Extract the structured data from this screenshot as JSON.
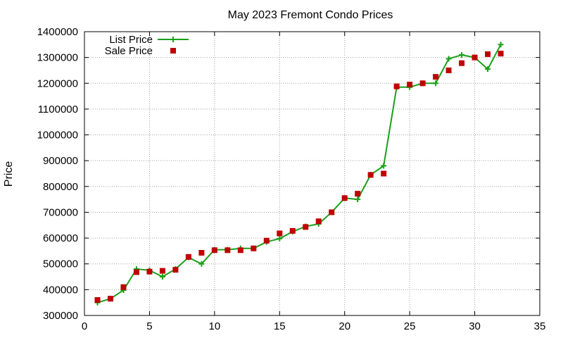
{
  "chart_data": {
    "type": "line",
    "title": "May 2023 Fremont Condo Prices",
    "xlabel": "",
    "ylabel": "Price",
    "xlim": [
      0,
      35
    ],
    "ylim": [
      300000,
      1400000
    ],
    "xticks": [
      0,
      5,
      10,
      15,
      20,
      25,
      30,
      35
    ],
    "yticks": [
      300000,
      400000,
      500000,
      600000,
      700000,
      800000,
      900000,
      1000000,
      1100000,
      1200000,
      1300000,
      1400000
    ],
    "grid": true,
    "legend_position": "top-left",
    "series": [
      {
        "name": "List Price",
        "style": "line+cross",
        "color": "#1aa01a",
        "x": [
          1,
          2,
          3,
          4,
          5,
          6,
          7,
          8,
          9,
          10,
          11,
          12,
          13,
          14,
          15,
          16,
          17,
          18,
          19,
          20,
          21,
          22,
          23,
          24,
          25,
          26,
          27,
          28,
          29,
          30,
          31,
          32
        ],
        "values": [
          350000,
          365000,
          398000,
          480000,
          475000,
          450000,
          480000,
          525000,
          500000,
          555000,
          555000,
          560000,
          560000,
          585000,
          598000,
          625000,
          645000,
          655000,
          700000,
          755000,
          750000,
          845000,
          880000,
          1185000,
          1185000,
          1200000,
          1200000,
          1295000,
          1310000,
          1300000,
          1255000,
          1350000
        ]
      },
      {
        "name": "Sale Price",
        "style": "square",
        "color": "#c00000",
        "x": [
          1,
          2,
          3,
          4,
          5,
          6,
          7,
          8,
          9,
          10,
          11,
          12,
          13,
          14,
          15,
          16,
          17,
          18,
          19,
          20,
          21,
          22,
          23,
          24,
          25,
          26,
          27,
          28,
          29,
          30,
          31,
          32
        ],
        "values": [
          360000,
          365000,
          410000,
          468000,
          470000,
          473000,
          477000,
          527000,
          543000,
          553000,
          553000,
          553000,
          560000,
          590000,
          618000,
          628000,
          643000,
          665000,
          700000,
          755000,
          772000,
          845000,
          850000,
          1188000,
          1195000,
          1200000,
          1225000,
          1250000,
          1278000,
          1300000,
          1313000,
          1315000
        ]
      }
    ]
  }
}
